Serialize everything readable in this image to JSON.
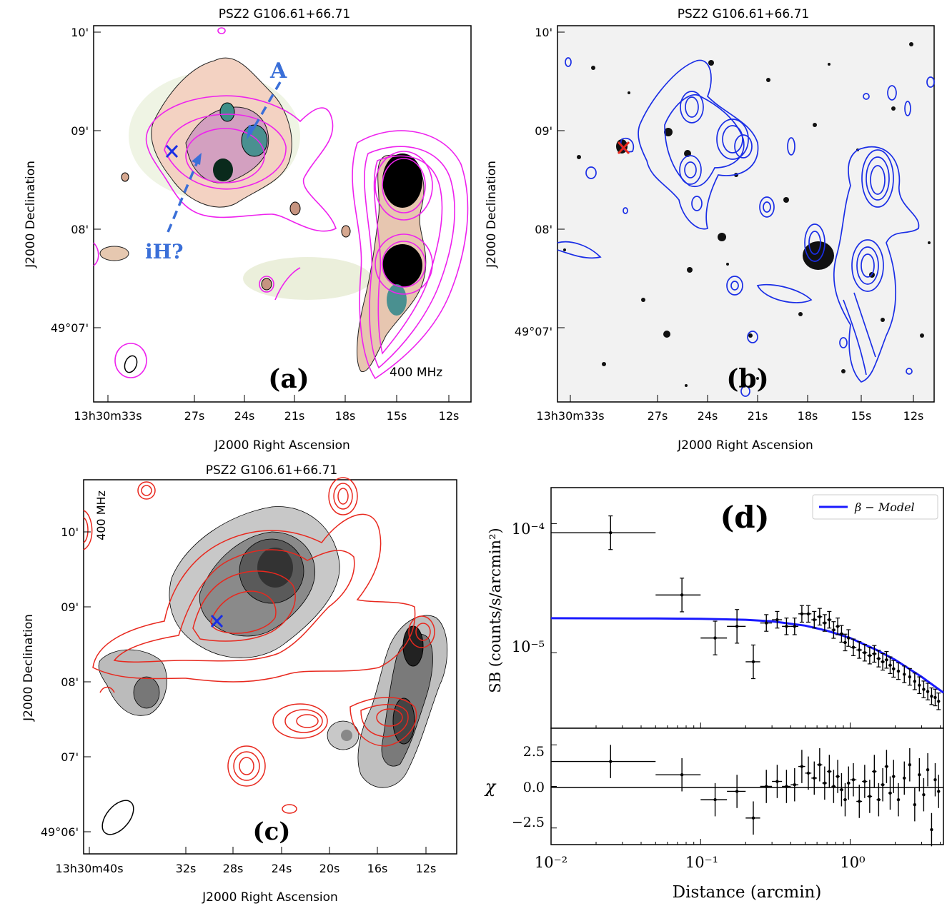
{
  "panel_a": {
    "title": "PSZ2 G106.61+66.71",
    "label": "(a)",
    "freq": "400 MHz",
    "annot_A": "A",
    "annot_iH": "iH?",
    "ylabel": "J2000 Declination",
    "xlabel": "J2000 Right Ascension",
    "yticks": [
      "10'",
      "09'",
      "08'",
      "49°07'"
    ],
    "xticks": [
      "13h30m33s",
      "27s",
      "24s",
      "21s",
      "18s",
      "15s",
      "12s"
    ]
  },
  "panel_b": {
    "title": "PSZ2 G106.61+66.71",
    "label": "(b)",
    "ylabel": "J2000 Declination",
    "xlabel": "J2000 Right Ascension",
    "yticks": [
      "10'",
      "09'",
      "08'",
      "49°07'"
    ],
    "xticks": [
      "13h30m33s",
      "27s",
      "24s",
      "21s",
      "18s",
      "15s",
      "12s"
    ]
  },
  "panel_c": {
    "title": "PSZ2 G106.61+66.71",
    "label": "(c)",
    "freq": "400 MHz",
    "ylabel": "J2000 Declination",
    "xlabel": "J2000 Right Ascension",
    "yticks": [
      "10'",
      "09'",
      "08'",
      "07'",
      "49°06'"
    ],
    "xticks": [
      "13h30m40s",
      "32s",
      "28s",
      "24s",
      "20s",
      "16s",
      "12s"
    ]
  },
  "panel_d": {
    "label": "(d)",
    "legend": "β − Model",
    "ylabel_top": "SB (counts/s/arcmin²)",
    "ylabel_bottom": "χ",
    "xlabel": "Distance (arcmin)",
    "xticks": [
      "10⁻²",
      "10⁻¹",
      "10⁰"
    ],
    "yticks_top": [
      "10⁻⁴",
      "10⁻⁵"
    ],
    "yticks_bottom": [
      "2.5",
      "0.0",
      "−2.5"
    ]
  },
  "colors": {
    "magenta": "#ee22ee",
    "blue": "#1a2ee6",
    "red": "#e8281e",
    "annot_blue": "#3a6fd8",
    "model_line": "#1a1aff"
  },
  "chart_data": {
    "type": "scatter",
    "title": "",
    "xlabel": "Distance (arcmin)",
    "ylabel": "SB (counts/s/arcmin^2)",
    "x_scale": "log",
    "y_scale": "log",
    "xlim": [
      0.01,
      4.2
    ],
    "ylim": [
      2.6e-06,
      0.00019
    ],
    "series": [
      {
        "name": "data",
        "x": [
          0.025,
          0.075,
          0.125,
          0.175,
          0.225,
          0.275,
          0.325,
          0.375,
          0.425,
          0.475,
          0.525,
          0.575,
          0.625,
          0.675,
          0.725,
          0.775,
          0.825,
          0.875,
          0.925,
          0.975,
          1.05,
          1.15,
          1.25,
          1.35,
          1.45,
          1.55,
          1.65,
          1.75,
          1.85,
          1.95,
          2.1,
          2.3,
          2.5,
          2.7,
          2.9,
          3.1,
          3.3,
          3.5,
          3.7,
          3.9
        ],
        "y": [
          8.5e-05,
          2.8e-05,
          1.3e-05,
          1.6e-05,
          8.5e-06,
          1.7e-05,
          1.8e-05,
          1.6e-05,
          1.6e-05,
          2e-05,
          2e-05,
          1.8e-05,
          1.9e-05,
          1.7e-05,
          1.8e-05,
          1.5e-05,
          1.6e-05,
          1.4e-05,
          1.2e-05,
          1.3e-05,
          1.1e-05,
          1.05e-05,
          1e-05,
          9.5e-06,
          9.8e-06,
          9e-06,
          8.5e-06,
          8.8e-06,
          8e-06,
          7.5e-06,
          7.2e-06,
          6.8e-06,
          6.5e-06,
          6e-06,
          5.6e-06,
          5.2e-06,
          5e-06,
          4.6e-06,
          4.5e-06,
          4.2e-06
        ]
      },
      {
        "name": "β − Model",
        "x": [
          0.01,
          0.05,
          0.1,
          0.2,
          0.3,
          0.5,
          0.7,
          1.0,
          1.5,
          2.0,
          3.0,
          4.2
        ],
        "y": [
          1.85e-05,
          1.84e-05,
          1.83e-05,
          1.8e-05,
          1.75e-05,
          1.62e-05,
          1.48e-05,
          1.3e-05,
          1.05e-05,
          8.8e-06,
          6.5e-06,
          4.9e-06
        ]
      }
    ],
    "residuals": {
      "ylabel": "χ",
      "ylim": [
        -3.5,
        3.5
      ],
      "y": [
        1.5,
        0.7,
        -0.8,
        -0.3,
        -1.9,
        0.0,
        0.3,
        0.0,
        0.1,
        1.2,
        0.8,
        0.5,
        1.3,
        0.2,
        0.9,
        0.0,
        0.6,
        -0.2,
        -0.8,
        0.2,
        0.4,
        -0.9,
        0.3,
        -0.6,
        0.9,
        -0.8,
        0.1,
        1.2,
        -0.4,
        0.6,
        -0.8,
        0.5,
        1.3,
        -1.1,
        0.7,
        -0.5,
        1.0,
        -2.6,
        0.4,
        -0.3
      ]
    }
  }
}
